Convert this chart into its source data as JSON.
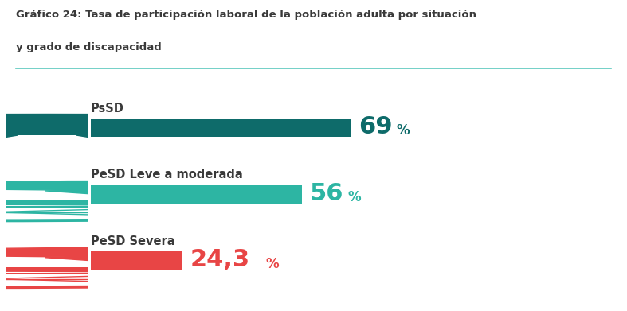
{
  "title_line1": "Gráfico 24: Tasa de participación laboral de la población adulta por situación",
  "title_line2": "y grado de discapacidad",
  "categories": [
    "PsSD",
    "PeSD Leve a moderada",
    "PeSD Severa"
  ],
  "values": [
    69,
    56,
    24.3
  ],
  "value_labels": [
    "69",
    "56",
    "24,3"
  ],
  "bar_colors": [
    "#0e6b6a",
    "#2db5a3",
    "#e84545"
  ],
  "label_colors": [
    "#0e6b6a",
    "#2db5a3",
    "#e84545"
  ],
  "icon_colors": [
    "#0e6b6a",
    "#2db5a3",
    "#e84545"
  ],
  "background_color": "#ffffff",
  "title_color": "#3a3a3a",
  "cat_label_color": "#3a3a3a",
  "separator_color": "#5bc8be",
  "title_fontsize": 9.5,
  "cat_fontsize": 10.5,
  "value_fontsize": 22,
  "pct_fontsize": 12
}
